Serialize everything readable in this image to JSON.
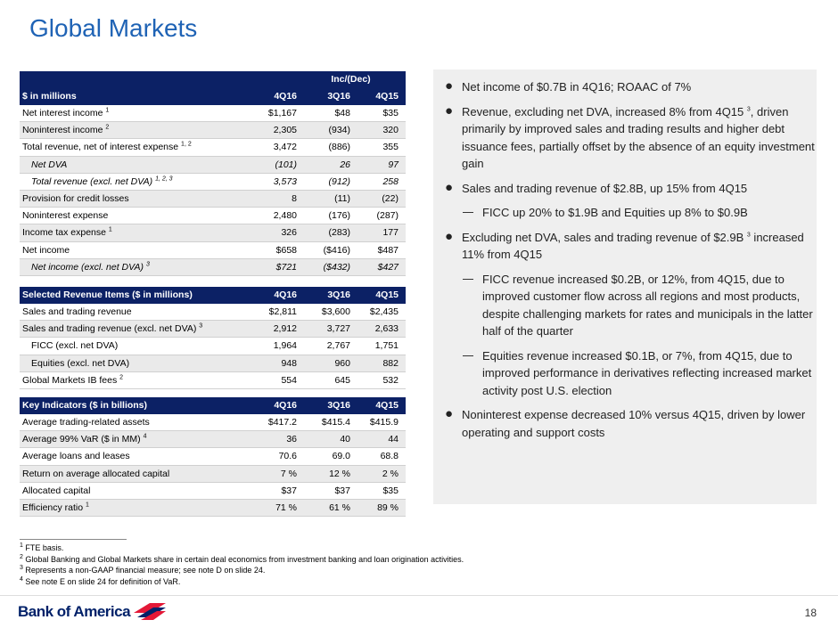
{
  "title": "Global Markets",
  "table": {
    "group_header": "Inc/(Dec)",
    "columns": [
      "$ in millions",
      "4Q16",
      "3Q16",
      "4Q15"
    ],
    "rows": [
      {
        "label": "Net interest income",
        "sup": "1",
        "cells": [
          "$1,167",
          "$48",
          "$35"
        ]
      },
      {
        "label": "Noninterest income",
        "sup": "2",
        "cells": [
          "2,305",
          "(934)",
          "320"
        ]
      },
      {
        "label": "Total revenue, net of interest expense",
        "sup": "1, 2",
        "cells": [
          "3,472",
          "(886)",
          "355"
        ]
      },
      {
        "label": "Net DVA",
        "italic": true,
        "indent": true,
        "cells": [
          "(101)",
          "26",
          "97"
        ]
      },
      {
        "label": "Total revenue (excl. net DVA)",
        "sup": "1, 2, 3",
        "italic": true,
        "indent": true,
        "cells": [
          "3,573",
          "(912)",
          "258"
        ]
      },
      {
        "label": "Provision for credit losses",
        "cells": [
          "8",
          "(11)",
          "(22)"
        ]
      },
      {
        "label": "Noninterest expense",
        "cells": [
          "2,480",
          "(176)",
          "(287)"
        ]
      },
      {
        "label": "Income tax expense",
        "sup": "1",
        "cells": [
          "326",
          "(283)",
          "177"
        ]
      },
      {
        "label": "Net income",
        "cells": [
          "$658",
          "($416)",
          "$487"
        ]
      },
      {
        "label": "Net income (excl. net DVA)",
        "sup": "3",
        "italic": true,
        "indent": true,
        "cells": [
          "$721",
          "($432)",
          "$427"
        ]
      }
    ]
  },
  "revenue_table": {
    "columns": [
      "Selected Revenue Items ($ in millions)",
      "4Q16",
      "3Q16",
      "4Q15"
    ],
    "rows": [
      {
        "label": "Sales and trading revenue",
        "cells": [
          "$2,811",
          "$3,600",
          "$2,435"
        ]
      },
      {
        "label": "Sales and trading revenue (excl. net DVA)",
        "sup": "3",
        "cells": [
          "2,912",
          "3,727",
          "2,633"
        ]
      },
      {
        "label": "FICC (excl. net DVA)",
        "indent": true,
        "cells": [
          "1,964",
          "2,767",
          "1,751"
        ]
      },
      {
        "label": "Equities (excl. net DVA)",
        "indent": true,
        "cells": [
          "948",
          "960",
          "882"
        ]
      },
      {
        "label": "Global Markets IB fees",
        "sup": "2",
        "cells": [
          "554",
          "645",
          "532"
        ]
      }
    ]
  },
  "indicators_table": {
    "columns": [
      "Key Indicators ($ in billions)",
      "4Q16",
      "3Q16",
      "4Q15"
    ],
    "rows": [
      {
        "label": "Average trading-related assets",
        "cells": [
          "$417.2",
          "$415.4",
          "$415.9"
        ]
      },
      {
        "label": "Average 99% VaR ($ in MM)",
        "sup": "4",
        "cells": [
          "36",
          "40",
          "44"
        ]
      },
      {
        "label": "Average loans and leases",
        "cells": [
          "70.6",
          "69.0",
          "68.8"
        ]
      },
      {
        "label": "Return on average allocated capital",
        "cells": [
          "7 %",
          "12 %",
          "2 %"
        ]
      },
      {
        "label": "Allocated capital",
        "cells": [
          "$37",
          "$37",
          "$35"
        ]
      },
      {
        "label": "Efficiency ratio",
        "sup": "1",
        "cells": [
          "71 %",
          "61 %",
          "89 %"
        ]
      }
    ]
  },
  "bullets": [
    {
      "level": 1,
      "parts": [
        "Net income of $0.7B in 4Q16; ROAAC of 7%"
      ]
    },
    {
      "level": 1,
      "parts": [
        "Revenue, excluding net DVA, increased 8% from 4Q15 ",
        {
          "sup": "3"
        },
        ", driven primarily by improved sales and trading results and higher debt issuance fees, partially offset by the absence of an equity investment gain"
      ]
    },
    {
      "level": 1,
      "parts": [
        "Sales and trading revenue of $2.8B, up 15% from 4Q15"
      ]
    },
    {
      "level": 2,
      "parts": [
        "FICC up 20% to $1.9B and Equities up 8% to $0.9B"
      ]
    },
    {
      "level": 1,
      "parts": [
        "Excluding net DVA, sales and trading revenue of $2.9B ",
        {
          "sup": "3"
        },
        " increased 11% from 4Q15"
      ]
    },
    {
      "level": 2,
      "parts": [
        "FICC revenue increased $0.2B, or 12%, from 4Q15, due to improved customer flow across all regions and most products, despite challenging markets for rates and municipals in the latter half of the quarter"
      ]
    },
    {
      "level": 2,
      "parts": [
        "Equities revenue increased $0.1B, or 7%, from 4Q15, due to improved performance in derivatives reflecting increased market activity post U.S. election"
      ]
    },
    {
      "level": 1,
      "parts": [
        "Noninterest expense decreased 10% versus 4Q15, driven by lower operating and support costs"
      ]
    }
  ],
  "footnotes": [
    {
      "num": "1",
      "text": "FTE basis."
    },
    {
      "num": "2",
      "text": "Global Banking and Global Markets share in certain deal economics from investment banking and loan origination activities."
    },
    {
      "num": "3",
      "text": "Represents a non-GAAP financial measure; see note D on slide 24."
    },
    {
      "num": "4",
      "text": "See note E on slide 24 for definition of VaR."
    }
  ],
  "logo": "Bank of America",
  "page_number": "18"
}
